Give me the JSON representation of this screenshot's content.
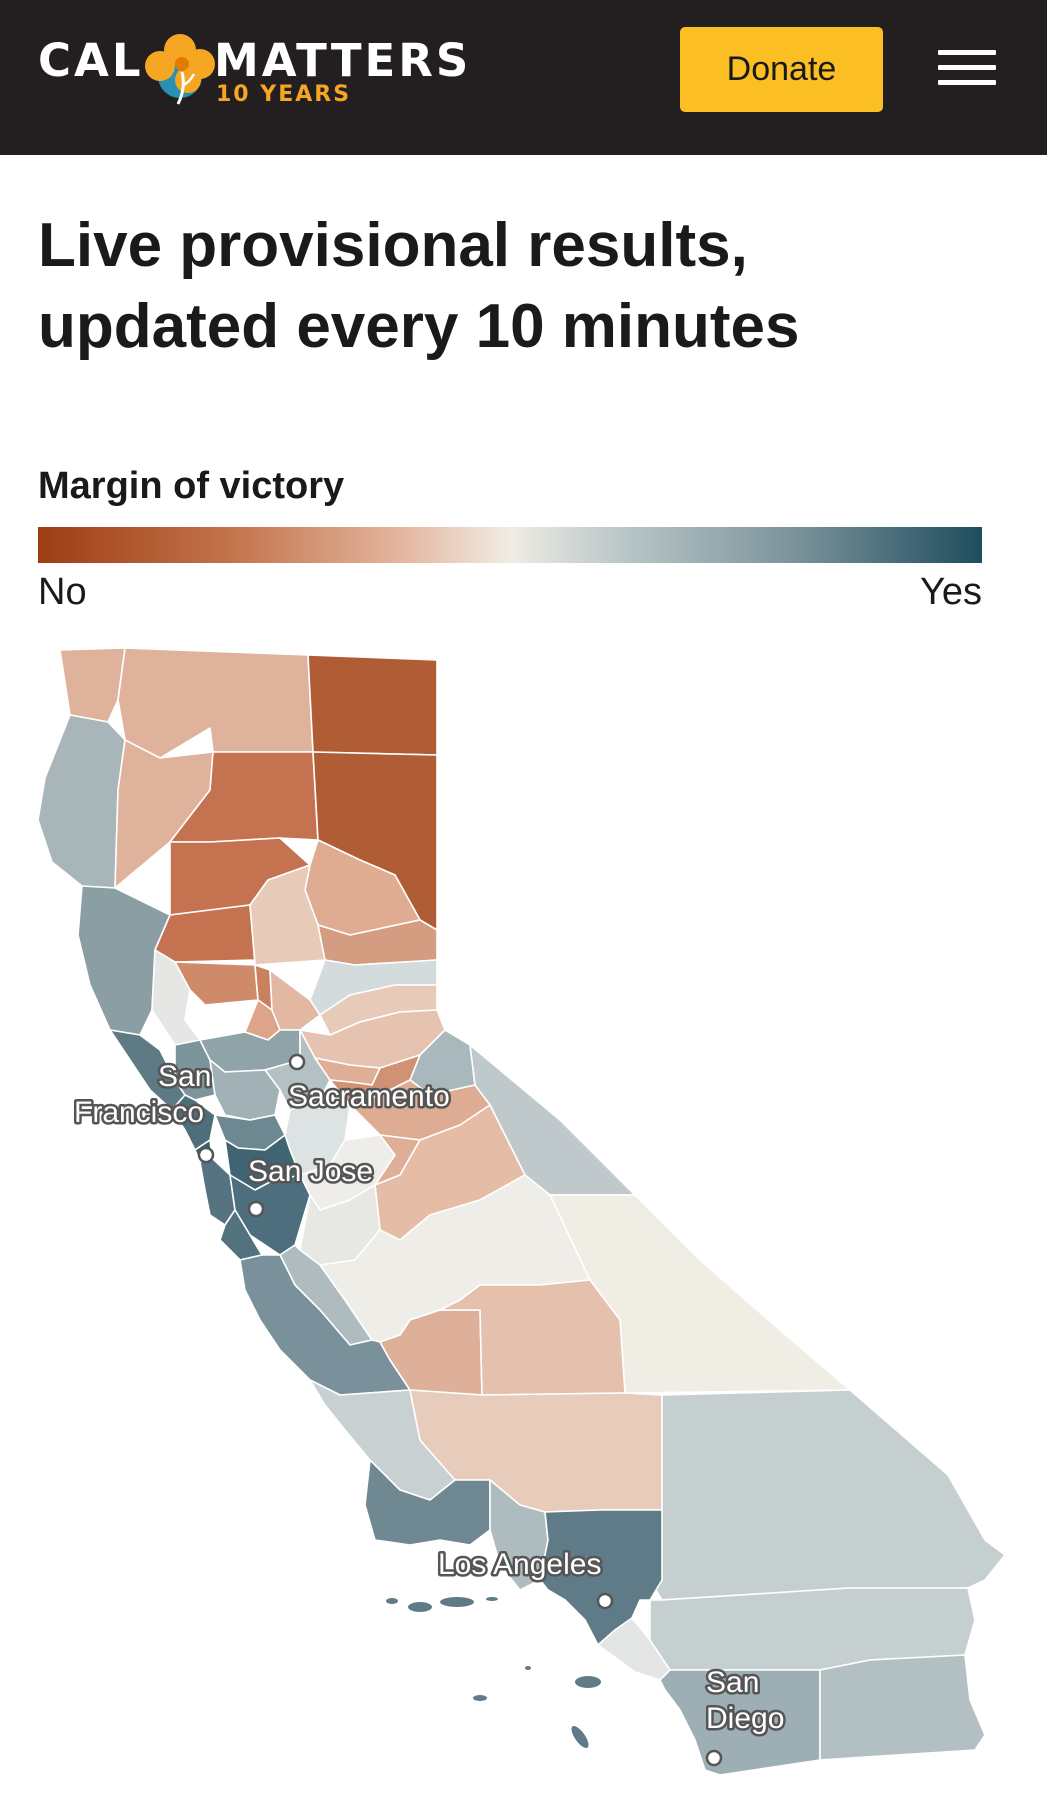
{
  "header": {
    "logo_left": "CAL",
    "logo_right": "MATTERS",
    "logo_sub": "10 YEARS",
    "donate_label": "Donate",
    "menu_icon": "hamburger-menu-icon",
    "colors": {
      "background": "#231f20",
      "donate": "#fbbf24",
      "logo_accent": "#f5a623"
    }
  },
  "page": {
    "headline_line1": "Live provisional results,",
    "headline_line2": "updated every 10 minutes"
  },
  "legend": {
    "title": "Margin of victory",
    "left_label": "No",
    "right_label": "Yes",
    "colors": [
      "#9e3d14",
      "#c2724a",
      "#e3b49c",
      "#f0ece4",
      "#b9c6c8",
      "#7c939b",
      "#1f4d5e"
    ]
  },
  "map": {
    "cities": [
      {
        "id": "sacramento",
        "lines": [
          "Sacramento"
        ]
      },
      {
        "id": "san-francisco",
        "lines": [
          "San",
          "Francisco"
        ]
      },
      {
        "id": "san-jose",
        "lines": [
          "San Jose"
        ]
      },
      {
        "id": "los-angeles",
        "lines": [
          "Los Angeles"
        ]
      },
      {
        "id": "san-diego",
        "lines": [
          "San",
          "Diego"
        ]
      }
    ]
  }
}
